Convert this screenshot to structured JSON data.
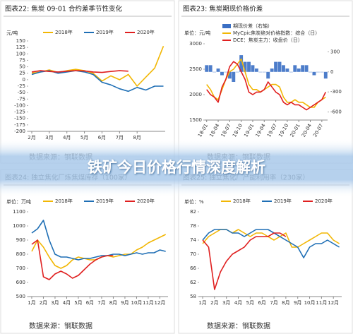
{
  "banner": "铁矿今日价格行情深度解析",
  "chart_data": [
    {
      "type": "line",
      "title": "图表22:   焦炭 09-01 合约差季节性变化",
      "y_label": "元/吨",
      "source": "数据来源：钢联数据",
      "x": [
        1,
        1.5,
        2,
        2.5,
        3,
        3.5,
        4,
        4.5,
        5,
        5.5,
        6,
        6.5,
        7,
        7.5,
        8,
        8.5
      ],
      "xlim": [
        0.8,
        8.6
      ],
      "xticks": [
        {
          "value": 1,
          "label": "2月"
        },
        {
          "value": 2,
          "label": "3月"
        },
        {
          "value": 3,
          "label": "4月"
        },
        {
          "value": 4,
          "label": "5月"
        },
        {
          "value": 5,
          "label": "6月"
        },
        {
          "value": 6,
          "label": "7月"
        },
        {
          "value": 7,
          "label": "8月"
        }
      ],
      "ylim": [
        -200,
        150
      ],
      "yticks": [
        150,
        125,
        100,
        75,
        50,
        25,
        0,
        -25,
        -50,
        -75,
        -100,
        -125,
        -150,
        -175,
        -200
      ],
      "grid": false,
      "series": [
        {
          "name": "2018年",
          "color": "#f2b705",
          "values": [
            25,
            30,
            38,
            28,
            35,
            40,
            35,
            25,
            -5,
            15,
            0,
            20,
            -25,
            10,
            45,
            130
          ]
        },
        {
          "name": "2019年",
          "color": "#1f6fb5",
          "values": [
            20,
            30,
            35,
            25,
            30,
            35,
            30,
            20,
            -10,
            -20,
            -35,
            -45,
            -30,
            -40,
            -25,
            -25
          ]
        },
        {
          "name": "2020年",
          "color": "#e02020",
          "values": [
            30,
            35,
            32,
            30,
            33,
            35,
            34,
            30,
            28,
            32,
            35,
            33,
            null,
            null,
            null,
            null
          ]
        }
      ]
    },
    {
      "type": "combo",
      "title": "图表23:   焦炭期现价格价差",
      "y_label": "单位：元/吨",
      "source": "数据来源：钢联数据",
      "x": [
        0,
        1,
        2,
        3,
        4,
        5,
        6,
        7,
        8,
        9,
        10,
        11,
        12,
        13,
        14,
        15,
        16,
        17,
        18,
        19,
        20,
        21,
        22,
        23,
        24,
        25,
        26,
        27,
        28,
        29,
        30,
        31
      ],
      "xlim": [
        -0.5,
        31.5
      ],
      "xticks": [
        {
          "value": 0,
          "label": "18-01"
        },
        {
          "value": 3,
          "label": "18-04"
        },
        {
          "value": 6,
          "label": "18-07"
        },
        {
          "value": 9,
          "label": "18-10"
        },
        {
          "value": 12,
          "label": "19-01"
        },
        {
          "value": 15,
          "label": "19-04"
        },
        {
          "value": 18,
          "label": "19-07"
        },
        {
          "value": 21,
          "label": "19-10"
        },
        {
          "value": 24,
          "label": "20-01"
        },
        {
          "value": 27,
          "label": "20-04"
        },
        {
          "value": 30,
          "label": "20-07"
        }
      ],
      "ylim": [
        1500,
        3000
      ],
      "yticks": [
        3000,
        2500,
        2000,
        1500
      ],
      "y2lim": [
        -720,
        420
      ],
      "y2ticks": [
        300,
        0,
        -300,
        -600
      ],
      "grid": false,
      "series": [
        {
          "name": "期现价差（右轴）",
          "color": "#3a6fc4",
          "type": "bar",
          "axis": "y2",
          "values": [
            100,
            100,
            0,
            50,
            -50,
            0,
            -100,
            -150,
            0,
            250,
            150,
            150,
            100,
            50,
            0,
            0,
            -100,
            50,
            150,
            150,
            100,
            50,
            0,
            100,
            50,
            100,
            100,
            0,
            -50,
            0,
            0,
            -100
          ]
        },
        {
          "name": "MyCpic焦炭绝对价格指数：综合（日）",
          "color": "#f2b705",
          "type": "line",
          "values": [
            2200,
            2100,
            1950,
            1900,
            2100,
            2300,
            2450,
            2500,
            2600,
            2700,
            2450,
            2200,
            2100,
            2100,
            2050,
            2100,
            2150,
            2200,
            2200,
            2150,
            1950,
            1850,
            1850,
            1900,
            1850,
            1850,
            1800,
            1750,
            1750,
            1850,
            1900,
            1950
          ]
        },
        {
          "name": "DCE：焦炭主力：收盘价（日）",
          "color": "#e02020",
          "type": "line",
          "values": [
            2100,
            2000,
            1950,
            1850,
            2150,
            2300,
            2550,
            2650,
            2600,
            2450,
            2300,
            2050,
            2000,
            2050,
            2050,
            2100,
            2250,
            2150,
            2050,
            2000,
            1850,
            1800,
            1850,
            1800,
            1800,
            1750,
            1700,
            1750,
            1800,
            1850,
            1900,
            2050
          ]
        }
      ]
    },
    {
      "type": "line",
      "title": "图表24:   独立焦化厂炼焦煤库存（100家）",
      "y_label": "单位：万吨",
      "source": "数据来源：钢联数据",
      "x": [
        1,
        1.5,
        2,
        2.5,
        3,
        3.5,
        4,
        4.5,
        5,
        5.5,
        6,
        6.5,
        7,
        7.5,
        8,
        8.5,
        9,
        9.5,
        10,
        10.5,
        11,
        11.5,
        12,
        12.5
      ],
      "xlim": [
        0.7,
        12.7
      ],
      "xticks": [
        {
          "value": 1,
          "label": "1月"
        },
        {
          "value": 2,
          "label": "2月"
        },
        {
          "value": 3,
          "label": "3月"
        },
        {
          "value": 4,
          "label": "4月"
        },
        {
          "value": 5,
          "label": "5月"
        },
        {
          "value": 6,
          "label": "6月"
        },
        {
          "value": 7,
          "label": "7月"
        },
        {
          "value": 8,
          "label": "8月"
        },
        {
          "value": 9,
          "label": "9月"
        },
        {
          "value": 10,
          "label": "10月"
        },
        {
          "value": 11,
          "label": "11月"
        },
        {
          "value": 12,
          "label": "12月"
        }
      ],
      "ylim": [
        500,
        1100
      ],
      "yticks": [
        1100,
        1000,
        900,
        800,
        700,
        600,
        500
      ],
      "grid": false,
      "series": [
        {
          "name": "2018年",
          "color": "#f2b705",
          "values": [
            820,
            900,
            850,
            780,
            720,
            700,
            720,
            760,
            780,
            770,
            760,
            760,
            780,
            790,
            780,
            790,
            800,
            800,
            830,
            850,
            880,
            900,
            920,
            940
          ]
        },
        {
          "name": "2019年",
          "color": "#1f6fb5",
          "values": [
            950,
            980,
            1040,
            900,
            800,
            780,
            780,
            770,
            760,
            770,
            770,
            780,
            790,
            790,
            800,
            800,
            790,
            800,
            810,
            800,
            810,
            810,
            830,
            820
          ]
        },
        {
          "name": "2020年",
          "color": "#e02020",
          "values": [
            870,
            900,
            640,
            620,
            660,
            680,
            660,
            630,
            650,
            690,
            730,
            760,
            780,
            790,
            790,
            null,
            null,
            null,
            null,
            null,
            null,
            null,
            null,
            null
          ]
        }
      ]
    },
    {
      "type": "line",
      "title": "图表25:   独立焦化厂产能利用率（230家）",
      "y_label": "单位：%",
      "source": "数据来源：钢联数据",
      "x": [
        1,
        1.5,
        2,
        2.5,
        3,
        3.5,
        4,
        4.5,
        5,
        5.5,
        6,
        6.5,
        7,
        7.5,
        8,
        8.5,
        9,
        9.5,
        10,
        10.5,
        11,
        11.5,
        12,
        12.5
      ],
      "xlim": [
        0.7,
        12.7
      ],
      "xticks": [
        {
          "value": 1,
          "label": "1月"
        },
        {
          "value": 2,
          "label": "2月"
        },
        {
          "value": 3,
          "label": "3月"
        },
        {
          "value": 4,
          "label": "4月"
        },
        {
          "value": 5,
          "label": "5月"
        },
        {
          "value": 6,
          "label": "6月"
        },
        {
          "value": 7,
          "label": "7月"
        },
        {
          "value": 8,
          "label": "8月"
        },
        {
          "value": 9,
          "label": "9月"
        },
        {
          "value": 10,
          "label": "10月"
        },
        {
          "value": 11,
          "label": "11月"
        },
        {
          "value": 12,
          "label": "12月"
        }
      ],
      "ylim": [
        58,
        82
      ],
      "yticks": [
        82,
        78,
        74,
        70,
        66,
        62,
        58
      ],
      "grid": false,
      "series": [
        {
          "name": "2018年",
          "color": "#f2b705",
          "values": [
            73,
            75,
            76,
            77,
            77,
            76,
            77,
            76,
            75,
            76,
            76,
            75,
            74,
            75,
            76,
            72,
            72,
            73,
            74,
            75,
            76,
            76,
            74,
            73
          ]
        },
        {
          "name": "2019年",
          "color": "#1f6fb5",
          "values": [
            74,
            76,
            77,
            77,
            77,
            76,
            76,
            75,
            76,
            77,
            77,
            77,
            76,
            75,
            74,
            73,
            72,
            69,
            72,
            73,
            73,
            74,
            73,
            72
          ]
        },
        {
          "name": "2020年",
          "color": "#e02020",
          "values": [
            74,
            72,
            60,
            65,
            68,
            70,
            71,
            72,
            74,
            75,
            75,
            75,
            76,
            76,
            75,
            null,
            null,
            null,
            null,
            null,
            null,
            null,
            null,
            null
          ]
        }
      ]
    }
  ]
}
